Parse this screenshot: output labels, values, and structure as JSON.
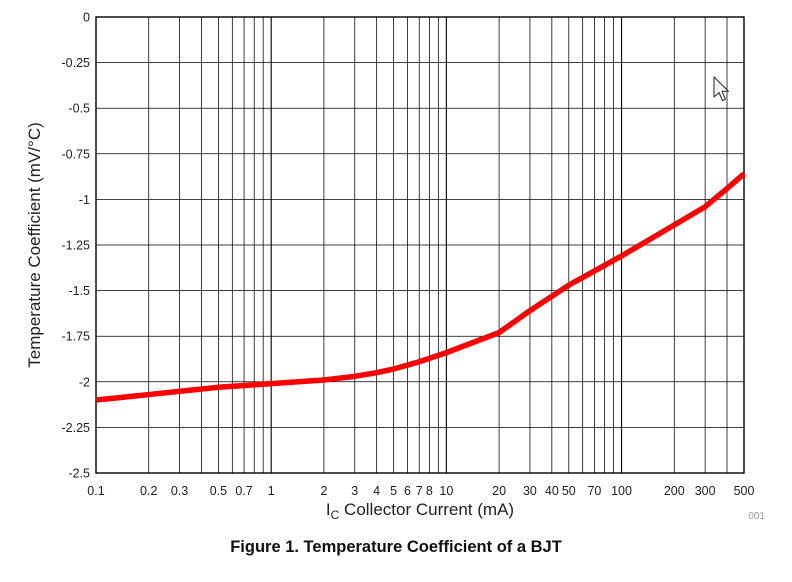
{
  "chart_data": {
    "type": "line",
    "title": "",
    "xlabel": "I_C Collector Current (mA)",
    "xlabel_main": "I",
    "xlabel_sub": "C",
    "xlabel_rest": " Collector Current (mA)",
    "ylabel": "Temperature Coefficient (mV/°C)",
    "xscale": "log",
    "xlim": [
      0.1,
      500
    ],
    "ylim": [
      -2.5,
      0
    ],
    "grid": true,
    "x_ticks": [
      0.1,
      0.2,
      0.3,
      0.5,
      0.7,
      1,
      2,
      3,
      4,
      5,
      6,
      7,
      8,
      10,
      20,
      30,
      40,
      50,
      70,
      100,
      200,
      300,
      500
    ],
    "x_tick_labels": [
      "0.1",
      "0.2",
      "0.3",
      "0.5",
      "0.7",
      "1",
      "2",
      "3",
      "4",
      "5",
      "6",
      "7",
      "8",
      "10",
      "20",
      "30",
      "40",
      "50",
      "70",
      "100",
      "200",
      "300",
      "500"
    ],
    "y_ticks": [
      0,
      -0.25,
      -0.5,
      -0.75,
      -1,
      -1.25,
      -1.5,
      -1.75,
      -2,
      -2.25,
      -2.5
    ],
    "y_tick_labels": [
      "0",
      "-0.25",
      "-0.5",
      "-0.75",
      "-1",
      "-1.25",
      "-1.5",
      "-1.75",
      "-2",
      "-2.25",
      "-2.5"
    ],
    "series": [
      {
        "color": "#ff0000",
        "x": [
          0.1,
          0.2,
          0.5,
          1,
          2,
          3,
          4,
          5,
          7,
          10,
          20,
          30,
          50,
          100,
          200,
          300,
          400,
          500
        ],
        "y": [
          -2.1,
          -2.07,
          -2.03,
          -2.01,
          -1.99,
          -1.97,
          -1.95,
          -1.93,
          -1.89,
          -1.84,
          -1.73,
          -1.61,
          -1.47,
          -1.31,
          -1.14,
          -1.04,
          -0.94,
          -0.86
        ]
      }
    ]
  },
  "figure_number": "001",
  "caption": "Figure 1. Temperature Coefficient of a BJT"
}
